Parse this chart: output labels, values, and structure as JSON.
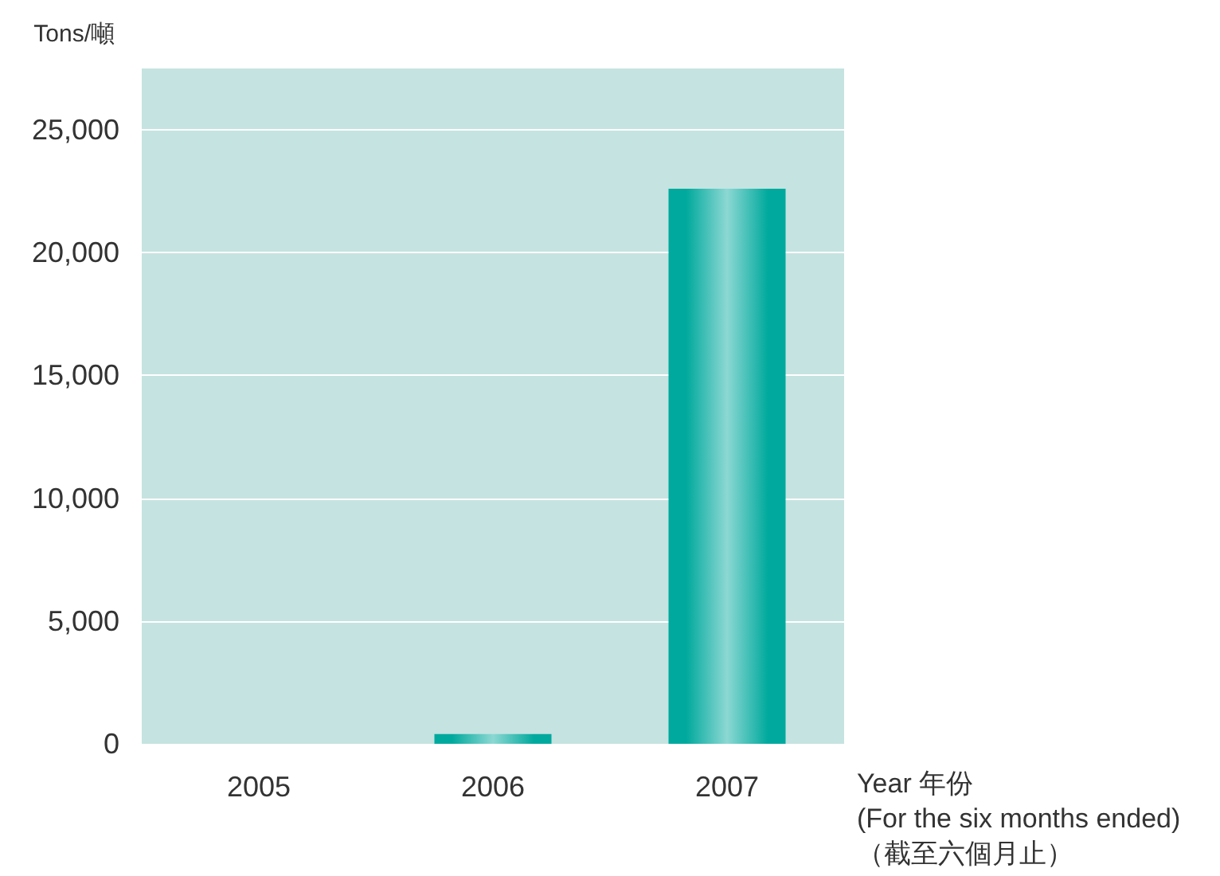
{
  "chart_data": {
    "type": "bar",
    "xlabel": "Year 年份\n(For the six months ended)\n（截至六個月止）",
    "ylabel": "Tons/噸",
    "categories": [
      "2005",
      "2006",
      "2007"
    ],
    "values": [
      0,
      400,
      22600
    ],
    "color": "#00a99d",
    "ylim": [
      0,
      27500
    ],
    "yticks": [
      {
        "value": 0,
        "label": "0"
      },
      {
        "value": 5000,
        "label": "5,000"
      },
      {
        "value": 10000,
        "label": "10,000"
      },
      {
        "value": 15000,
        "label": "15,000"
      },
      {
        "value": 20000,
        "label": "20,000"
      },
      {
        "value": 25000,
        "label": "25,000"
      }
    ],
    "grid": "y"
  }
}
